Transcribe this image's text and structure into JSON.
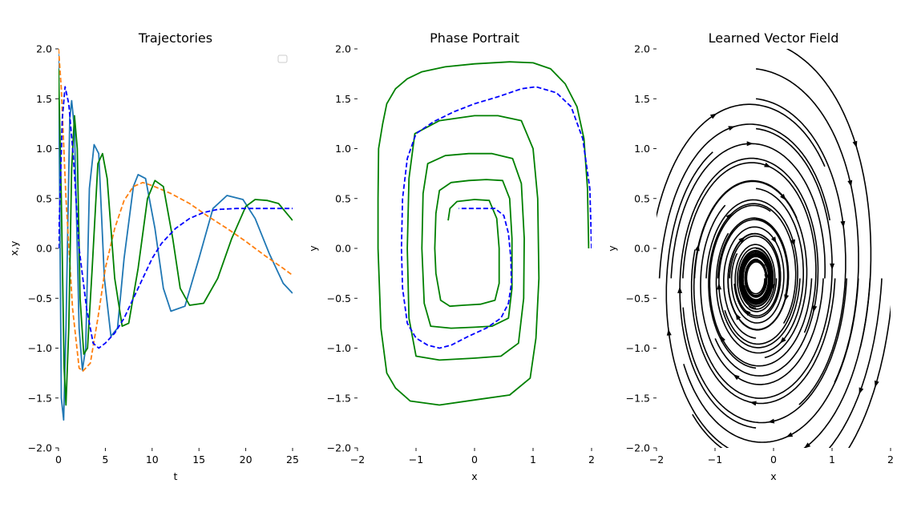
{
  "chart_data": [
    {
      "type": "line",
      "title": "Trajectories",
      "xlabel": "t",
      "ylabel": "x,y",
      "xlim": [
        0,
        25
      ],
      "ylim": [
        -2,
        2
      ],
      "xticks": [
        "0",
        "5",
        "10",
        "15",
        "20",
        "25"
      ],
      "yticks": [
        "−2.0",
        "−1.5",
        "−1.0",
        "−0.5",
        "0.0",
        "0.5",
        "1.0",
        "1.5",
        "2.0"
      ],
      "legend": "top-right (empty)",
      "grid": false,
      "series": [
        {
          "color": "#1f77b4",
          "style": "solid",
          "points": [
            [
              0,
              1.95
            ],
            [
              0.3,
              -1.5
            ],
            [
              0.55,
              -1.72
            ],
            [
              0.8,
              -0.8
            ],
            [
              1.2,
              1.3
            ],
            [
              1.4,
              1.48
            ],
            [
              1.7,
              1.2
            ],
            [
              2.2,
              -0.8
            ],
            [
              2.55,
              -1.22
            ],
            [
              2.9,
              -1.0
            ],
            [
              3.3,
              0.6
            ],
            [
              3.8,
              1.04
            ],
            [
              4.3,
              0.95
            ],
            [
              4.9,
              -0.3
            ],
            [
              5.6,
              -0.88
            ],
            [
              6.3,
              -0.8
            ],
            [
              7.0,
              -0.1
            ],
            [
              8.0,
              0.62
            ],
            [
              8.5,
              0.74
            ],
            [
              9.3,
              0.7
            ],
            [
              10.3,
              0.2
            ],
            [
              11.2,
              -0.4
            ],
            [
              12.0,
              -0.63
            ],
            [
              13.5,
              -0.58
            ],
            [
              15.0,
              -0.1
            ],
            [
              16.5,
              0.4
            ],
            [
              18.0,
              0.53
            ],
            [
              19.7,
              0.49
            ],
            [
              21.0,
              0.3
            ],
            [
              22.5,
              -0.05
            ],
            [
              24.0,
              -0.35
            ],
            [
              25.0,
              -0.45
            ]
          ]
        },
        {
          "color": "#ff7f0e",
          "style": "dashed",
          "points": [
            [
              0,
              2.0
            ],
            [
              0.3,
              1.6
            ],
            [
              0.8,
              0.5
            ],
            [
              1.5,
              -0.6
            ],
            [
              2.2,
              -1.2
            ],
            [
              2.6,
              -1.23
            ],
            [
              3.4,
              -1.15
            ],
            [
              4.2,
              -0.7
            ],
            [
              5.0,
              -0.2
            ],
            [
              6.0,
              0.2
            ],
            [
              7.0,
              0.48
            ],
            [
              8.0,
              0.62
            ],
            [
              9.0,
              0.66
            ],
            [
              10.0,
              0.63
            ],
            [
              12.0,
              0.55
            ],
            [
              14.0,
              0.45
            ],
            [
              16.0,
              0.32
            ],
            [
              18.0,
              0.2
            ],
            [
              20.0,
              0.07
            ],
            [
              22.0,
              -0.07
            ],
            [
              24.0,
              -0.2
            ],
            [
              25.0,
              -0.27
            ]
          ]
        },
        {
          "color": "#008000",
          "style": "solid",
          "points": [
            [
              0,
              1.8
            ],
            [
              0.3,
              0.5
            ],
            [
              0.6,
              -1.2
            ],
            [
              0.8,
              -1.57
            ],
            [
              1.1,
              -0.8
            ],
            [
              1.4,
              0.8
            ],
            [
              1.7,
              1.33
            ],
            [
              2.0,
              1.0
            ],
            [
              2.3,
              -0.5
            ],
            [
              2.7,
              -1.06
            ],
            [
              3.1,
              -1.0
            ],
            [
              3.6,
              -0.2
            ],
            [
              4.2,
              0.85
            ],
            [
              4.7,
              0.95
            ],
            [
              5.2,
              0.7
            ],
            [
              6.0,
              -0.3
            ],
            [
              6.8,
              -0.78
            ],
            [
              7.5,
              -0.75
            ],
            [
              8.5,
              -0.2
            ],
            [
              9.5,
              0.5
            ],
            [
              10.3,
              0.68
            ],
            [
              11.2,
              0.62
            ],
            [
              12.2,
              0.1
            ],
            [
              13.0,
              -0.4
            ],
            [
              14.0,
              -0.57
            ],
            [
              15.5,
              -0.55
            ],
            [
              17.0,
              -0.3
            ],
            [
              18.5,
              0.1
            ],
            [
              20.0,
              0.42
            ],
            [
              21.0,
              0.49
            ],
            [
              22.3,
              0.48
            ],
            [
              23.5,
              0.45
            ],
            [
              25.0,
              0.28
            ]
          ]
        },
        {
          "color": "#0000ff",
          "style": "dashed",
          "points": [
            [
              0,
              0.0
            ],
            [
              0.4,
              1.3
            ],
            [
              0.7,
              1.62
            ],
            [
              1.1,
              1.45
            ],
            [
              1.6,
              0.9
            ],
            [
              2.2,
              0.0
            ],
            [
              3.0,
              -0.6
            ],
            [
              3.7,
              -0.95
            ],
            [
              4.3,
              -1.0
            ],
            [
              5.0,
              -0.95
            ],
            [
              6.0,
              -0.85
            ],
            [
              7.0,
              -0.7
            ],
            [
              8.0,
              -0.5
            ],
            [
              9.0,
              -0.3
            ],
            [
              10.0,
              -0.1
            ],
            [
              11.0,
              0.05
            ],
            [
              12.5,
              0.2
            ],
            [
              14.0,
              0.3
            ],
            [
              15.5,
              0.36
            ],
            [
              17.0,
              0.39
            ],
            [
              19.0,
              0.4
            ],
            [
              21.0,
              0.4
            ],
            [
              25.0,
              0.4
            ]
          ]
        }
      ]
    },
    {
      "type": "line",
      "title": "Phase Portrait",
      "xlabel": "x",
      "ylabel": "y",
      "xlim": [
        -2,
        2
      ],
      "ylim": [
        -2,
        2
      ],
      "xticks": [
        "−2",
        "−1",
        "0",
        "1",
        "2"
      ],
      "yticks": [
        "−2.0",
        "−1.5",
        "−1.0",
        "−0.5",
        "0.0",
        "0.5",
        "1.0",
        "1.5",
        "2.0"
      ],
      "grid": false,
      "series": [
        {
          "color": "#008000",
          "style": "solid",
          "points": [
            [
              -0.45,
              0.28
            ],
            [
              -0.42,
              0.4
            ],
            [
              -0.3,
              0.47
            ],
            [
              0.0,
              0.49
            ],
            [
              0.25,
              0.48
            ],
            [
              0.38,
              0.3
            ],
            [
              0.42,
              0.0
            ],
            [
              0.42,
              -0.35
            ],
            [
              0.35,
              -0.52
            ],
            [
              0.1,
              -0.56
            ],
            [
              -0.2,
              -0.57
            ],
            [
              -0.42,
              -0.58
            ],
            [
              -0.58,
              -0.52
            ],
            [
              -0.66,
              -0.25
            ],
            [
              -0.68,
              0.0
            ],
            [
              -0.66,
              0.35
            ],
            [
              -0.6,
              0.58
            ],
            [
              -0.4,
              0.66
            ],
            [
              -0.1,
              0.68
            ],
            [
              0.2,
              0.69
            ],
            [
              0.48,
              0.68
            ],
            [
              0.6,
              0.5
            ],
            [
              0.64,
              0.1
            ],
            [
              0.64,
              -0.4
            ],
            [
              0.58,
              -0.7
            ],
            [
              0.3,
              -0.78
            ],
            [
              0.0,
              -0.79
            ],
            [
              -0.4,
              -0.8
            ],
            [
              -0.75,
              -0.78
            ],
            [
              -0.86,
              -0.55
            ],
            [
              -0.9,
              0.0
            ],
            [
              -0.88,
              0.55
            ],
            [
              -0.8,
              0.85
            ],
            [
              -0.5,
              0.93
            ],
            [
              -0.1,
              0.95
            ],
            [
              0.3,
              0.95
            ],
            [
              0.65,
              0.9
            ],
            [
              0.8,
              0.65
            ],
            [
              0.85,
              0.1
            ],
            [
              0.84,
              -0.5
            ],
            [
              0.75,
              -0.95
            ],
            [
              0.45,
              -1.08
            ],
            [
              0.0,
              -1.1
            ],
            [
              -0.6,
              -1.12
            ],
            [
              -1.0,
              -1.08
            ],
            [
              -1.12,
              -0.7
            ],
            [
              -1.15,
              0.0
            ],
            [
              -1.12,
              0.7
            ],
            [
              -1.02,
              1.15
            ],
            [
              -0.6,
              1.28
            ],
            [
              0.0,
              1.33
            ],
            [
              0.4,
              1.33
            ],
            [
              0.8,
              1.28
            ],
            [
              1.0,
              1.0
            ],
            [
              1.08,
              0.5
            ],
            [
              1.1,
              -0.3
            ],
            [
              1.05,
              -0.9
            ],
            [
              0.95,
              -1.3
            ],
            [
              0.6,
              -1.47
            ],
            [
              0.0,
              -1.52
            ],
            [
              -0.6,
              -1.57
            ],
            [
              -1.1,
              -1.53
            ],
            [
              -1.35,
              -1.4
            ],
            [
              -1.5,
              -1.25
            ],
            [
              -1.6,
              -0.8
            ],
            [
              -1.65,
              0.0
            ],
            [
              -1.65,
              0.5
            ],
            [
              -1.64,
              1.0
            ],
            [
              -1.57,
              1.25
            ],
            [
              -1.5,
              1.45
            ],
            [
              -1.35,
              1.6
            ],
            [
              -1.15,
              1.7
            ],
            [
              -0.9,
              1.77
            ],
            [
              -0.5,
              1.82
            ],
            [
              0.0,
              1.85
            ],
            [
              0.6,
              1.87
            ],
            [
              1.0,
              1.86
            ],
            [
              1.3,
              1.8
            ],
            [
              1.55,
              1.65
            ],
            [
              1.75,
              1.42
            ],
            [
              1.87,
              1.1
            ],
            [
              1.93,
              0.6
            ],
            [
              1.95,
              0.0
            ]
          ]
        },
        {
          "color": "#0000ff",
          "style": "dashed",
          "points": [
            [
              2.0,
              0.0
            ],
            [
              1.97,
              0.6
            ],
            [
              1.85,
              1.1
            ],
            [
              1.65,
              1.42
            ],
            [
              1.4,
              1.56
            ],
            [
              1.05,
              1.62
            ],
            [
              0.8,
              1.6
            ],
            [
              0.4,
              1.52
            ],
            [
              0.0,
              1.45
            ],
            [
              -0.35,
              1.37
            ],
            [
              -0.7,
              1.27
            ],
            [
              -1.0,
              1.15
            ],
            [
              -1.15,
              0.9
            ],
            [
              -1.23,
              0.5
            ],
            [
              -1.25,
              0.0
            ],
            [
              -1.23,
              -0.4
            ],
            [
              -1.15,
              -0.75
            ],
            [
              -1.0,
              -0.9
            ],
            [
              -0.8,
              -0.97
            ],
            [
              -0.6,
              -1.0
            ],
            [
              -0.4,
              -0.97
            ],
            [
              -0.1,
              -0.88
            ],
            [
              0.2,
              -0.8
            ],
            [
              0.45,
              -0.7
            ],
            [
              0.58,
              -0.55
            ],
            [
              0.63,
              -0.35
            ],
            [
              0.62,
              -0.1
            ],
            [
              0.58,
              0.15
            ],
            [
              0.5,
              0.33
            ],
            [
              0.35,
              0.4
            ],
            [
              0.1,
              0.4
            ],
            [
              -0.15,
              0.4
            ],
            [
              -0.27,
              0.4
            ]
          ]
        }
      ]
    },
    {
      "type": "streamplot",
      "title": "Learned Vector Field",
      "xlabel": "x",
      "ylabel": "y",
      "xlim": [
        -2,
        2
      ],
      "ylim": [
        -2,
        2
      ],
      "xticks": [
        "−2",
        "−1",
        "0",
        "1",
        "2"
      ],
      "yticks": [
        "−2.0",
        "−1.5",
        "−1.0",
        "−0.5",
        "0.0",
        "0.5",
        "1.0",
        "1.5",
        "2.0"
      ],
      "grid": false,
      "line_color": "#000000",
      "rotation": "clockwise spiral toward (-0.3, -0.3)"
    }
  ]
}
